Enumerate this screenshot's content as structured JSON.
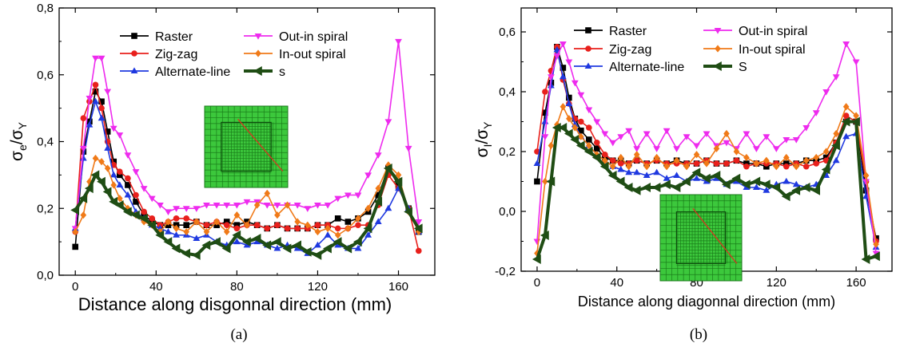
{
  "chart_data": [
    {
      "type": "line",
      "panel_label": "(a)",
      "xlabel": "Distance along disgonnal direction (mm)",
      "ylabel": {
        "main": "σ",
        "sub": "e",
        "sep": "/σ",
        "sub2": "Y"
      },
      "xlim": [
        -8,
        178
      ],
      "ylim": [
        0,
        0.8
      ],
      "xticks": [
        0,
        40,
        80,
        120,
        160
      ],
      "yticks": [
        0.0,
        0.2,
        0.4,
        0.6,
        0.8
      ],
      "ytick_labels": [
        "0,0",
        "0,2",
        "0,4",
        "0,6",
        "0,8"
      ],
      "legend_placement": "top",
      "inset": "mesh-with-diagonal",
      "series": [
        {
          "name": "Raster",
          "color": "#000000",
          "marker": "square",
          "x": [
            0,
            4,
            7,
            10,
            13,
            16,
            19,
            22,
            26,
            30,
            34,
            38,
            42,
            46,
            50,
            55,
            60,
            65,
            70,
            75,
            80,
            85,
            90,
            95,
            100,
            105,
            110,
            115,
            120,
            125,
            130,
            135,
            140,
            145,
            150,
            155,
            160,
            165,
            170
          ],
          "y": [
            0.085,
            0.37,
            0.46,
            0.55,
            0.52,
            0.43,
            0.34,
            0.3,
            0.27,
            0.22,
            0.18,
            0.16,
            0.15,
            0.15,
            0.15,
            0.15,
            0.16,
            0.15,
            0.15,
            0.16,
            0.15,
            0.16,
            0.15,
            0.14,
            0.15,
            0.14,
            0.14,
            0.14,
            0.15,
            0.15,
            0.17,
            0.16,
            0.17,
            0.19,
            0.24,
            0.32,
            0.27,
            0.2,
            0.13
          ]
        },
        {
          "name": "Zig-zag",
          "color": "#e8201c",
          "marker": "circle",
          "x": [
            0,
            4,
            7,
            10,
            13,
            16,
            19,
            22,
            26,
            30,
            34,
            38,
            42,
            46,
            50,
            55,
            60,
            65,
            70,
            75,
            80,
            85,
            90,
            95,
            100,
            105,
            110,
            115,
            120,
            125,
            130,
            135,
            140,
            145,
            150,
            155,
            160,
            165,
            170
          ],
          "y": [
            0.13,
            0.47,
            0.52,
            0.57,
            0.5,
            0.4,
            0.33,
            0.31,
            0.29,
            0.24,
            0.19,
            0.17,
            0.15,
            0.16,
            0.17,
            0.17,
            0.16,
            0.15,
            0.16,
            0.15,
            0.14,
            0.15,
            0.15,
            0.14,
            0.15,
            0.14,
            0.14,
            0.14,
            0.15,
            0.15,
            0.14,
            0.14,
            0.15,
            0.15,
            0.21,
            0.3,
            0.26,
            0.2,
            0.073
          ]
        },
        {
          "name": "Alternate-line",
          "color": "#1f39e0",
          "marker": "triangle-up",
          "x": [
            0,
            4,
            7,
            10,
            13,
            16,
            19,
            22,
            26,
            30,
            34,
            38,
            42,
            46,
            50,
            55,
            60,
            65,
            70,
            75,
            80,
            85,
            90,
            95,
            100,
            105,
            110,
            115,
            120,
            125,
            130,
            135,
            140,
            145,
            150,
            155,
            160,
            165,
            170
          ],
          "y": [
            0.14,
            0.35,
            0.45,
            0.52,
            0.47,
            0.38,
            0.3,
            0.27,
            0.24,
            0.19,
            0.17,
            0.15,
            0.14,
            0.13,
            0.12,
            0.12,
            0.11,
            0.12,
            0.1,
            0.09,
            0.1,
            0.09,
            0.1,
            0.09,
            0.08,
            0.09,
            0.08,
            0.065,
            0.09,
            0.12,
            0.09,
            0.08,
            0.08,
            0.12,
            0.16,
            0.2,
            0.26,
            0.2,
            0.13
          ]
        },
        {
          "name": "Out-in spiral",
          "color": "#ee2bee",
          "marker": "triangle-down",
          "x": [
            0,
            4,
            7,
            10,
            13,
            16,
            19,
            22,
            26,
            30,
            34,
            38,
            42,
            46,
            50,
            55,
            60,
            65,
            70,
            75,
            80,
            85,
            90,
            95,
            100,
            105,
            110,
            115,
            120,
            125,
            130,
            135,
            140,
            145,
            150,
            155,
            160,
            165,
            170
          ],
          "y": [
            0.14,
            0.38,
            0.53,
            0.65,
            0.65,
            0.55,
            0.44,
            0.42,
            0.36,
            0.31,
            0.26,
            0.23,
            0.21,
            0.19,
            0.2,
            0.2,
            0.2,
            0.21,
            0.21,
            0.21,
            0.21,
            0.22,
            0.22,
            0.21,
            0.21,
            0.21,
            0.21,
            0.2,
            0.21,
            0.21,
            0.23,
            0.24,
            0.24,
            0.3,
            0.36,
            0.46,
            0.7,
            0.38,
            0.16
          ]
        },
        {
          "name": "In-out spiral",
          "color": "#f07a18",
          "marker": "diamond",
          "x": [
            0,
            4,
            7,
            10,
            13,
            16,
            19,
            22,
            26,
            30,
            34,
            38,
            42,
            46,
            50,
            55,
            60,
            65,
            70,
            75,
            80,
            85,
            90,
            95,
            100,
            105,
            110,
            115,
            120,
            125,
            130,
            135,
            140,
            145,
            150,
            155,
            160,
            165,
            170
          ],
          "y": [
            0.13,
            0.18,
            0.28,
            0.35,
            0.34,
            0.32,
            0.27,
            0.23,
            0.2,
            0.18,
            0.16,
            0.15,
            0.13,
            0.16,
            0.14,
            0.13,
            0.16,
            0.13,
            0.16,
            0.13,
            0.18,
            0.15,
            0.21,
            0.245,
            0.18,
            0.21,
            0.16,
            0.15,
            0.13,
            0.14,
            0.12,
            0.14,
            0.17,
            0.2,
            0.26,
            0.33,
            0.3,
            0.19,
            0.13
          ]
        },
        {
          "name": "s",
          "color": "#1f4d14",
          "marker": "left-triangle",
          "thick": true,
          "x": [
            0,
            4,
            7,
            10,
            13,
            16,
            19,
            22,
            26,
            30,
            34,
            38,
            42,
            46,
            50,
            55,
            60,
            65,
            70,
            75,
            80,
            85,
            90,
            95,
            100,
            105,
            110,
            115,
            120,
            125,
            130,
            135,
            140,
            145,
            150,
            155,
            160,
            165,
            170
          ],
          "y": [
            0.195,
            0.23,
            0.26,
            0.3,
            0.28,
            0.25,
            0.22,
            0.21,
            0.19,
            0.18,
            0.17,
            0.15,
            0.12,
            0.1,
            0.08,
            0.065,
            0.06,
            0.09,
            0.1,
            0.08,
            0.12,
            0.1,
            0.11,
            0.09,
            0.1,
            0.08,
            0.09,
            0.07,
            0.06,
            0.08,
            0.1,
            0.08,
            0.1,
            0.14,
            0.22,
            0.32,
            0.28,
            0.19,
            0.14
          ]
        }
      ]
    },
    {
      "type": "line",
      "panel_label": "(b)",
      "xlabel": "Distance along diagonnal direction (mm)",
      "ylabel": {
        "main": "σ",
        "sub": "I",
        "sep": "/σ",
        "sub2": "Y"
      },
      "xlim": [
        -8,
        178
      ],
      "ylim": [
        -0.2,
        0.68
      ],
      "xticks": [
        0,
        40,
        80,
        120,
        160
      ],
      "yticks": [
        -0.2,
        0.0,
        0.2,
        0.4,
        0.6
      ],
      "ytick_labels": [
        "-0,2",
        "0,0",
        "0,2",
        "0,4",
        "0,6"
      ],
      "legend_placement": "top",
      "inset": "mesh-with-diagonal",
      "series": [
        {
          "name": "Raster",
          "color": "#000000",
          "marker": "square",
          "x": [
            0,
            4,
            7,
            10,
            13,
            16,
            19,
            22,
            26,
            30,
            34,
            38,
            42,
            46,
            50,
            55,
            60,
            65,
            70,
            75,
            80,
            85,
            90,
            95,
            100,
            105,
            110,
            115,
            120,
            125,
            130,
            135,
            140,
            145,
            150,
            155,
            160,
            165,
            170
          ],
          "y": [
            0.1,
            0.33,
            0.43,
            0.55,
            0.48,
            0.38,
            0.31,
            0.27,
            0.24,
            0.21,
            0.18,
            0.17,
            0.17,
            0.16,
            0.17,
            0.16,
            0.17,
            0.16,
            0.17,
            0.16,
            0.16,
            0.17,
            0.16,
            0.16,
            0.17,
            0.16,
            0.16,
            0.15,
            0.16,
            0.16,
            0.16,
            0.17,
            0.17,
            0.18,
            0.23,
            0.3,
            0.3,
            0.07,
            -0.09
          ]
        },
        {
          "name": "Zig-zag",
          "color": "#e8201c",
          "marker": "circle",
          "x": [
            0,
            4,
            7,
            10,
            13,
            16,
            19,
            22,
            26,
            30,
            34,
            38,
            42,
            46,
            50,
            55,
            60,
            65,
            70,
            75,
            80,
            85,
            90,
            95,
            100,
            105,
            110,
            115,
            120,
            125,
            130,
            135,
            140,
            145,
            150,
            155,
            160,
            165,
            170
          ],
          "y": [
            0.2,
            0.4,
            0.47,
            0.55,
            0.44,
            0.36,
            0.31,
            0.3,
            0.28,
            0.23,
            0.19,
            0.17,
            0.16,
            0.16,
            0.17,
            0.16,
            0.17,
            0.16,
            0.16,
            0.16,
            0.16,
            0.17,
            0.16,
            0.16,
            0.17,
            0.15,
            0.16,
            0.16,
            0.16,
            0.15,
            0.16,
            0.15,
            0.16,
            0.17,
            0.23,
            0.32,
            0.3,
            0.1,
            -0.1
          ]
        },
        {
          "name": "Alternate-line",
          "color": "#1f39e0",
          "marker": "triangle-up",
          "x": [
            0,
            4,
            7,
            10,
            13,
            16,
            19,
            22,
            26,
            30,
            34,
            38,
            42,
            46,
            50,
            55,
            60,
            65,
            70,
            75,
            80,
            85,
            90,
            95,
            100,
            105,
            110,
            115,
            120,
            125,
            130,
            135,
            140,
            145,
            150,
            155,
            160,
            165,
            170
          ],
          "y": [
            0.16,
            0.3,
            0.42,
            0.54,
            0.45,
            0.36,
            0.29,
            0.25,
            0.22,
            0.19,
            0.17,
            0.15,
            0.14,
            0.13,
            0.13,
            0.12,
            0.13,
            0.11,
            0.12,
            0.1,
            0.11,
            0.1,
            0.11,
            0.09,
            0.1,
            0.08,
            0.08,
            0.07,
            0.09,
            0.1,
            0.09,
            0.08,
            0.09,
            0.12,
            0.17,
            0.25,
            0.26,
            0.05,
            -0.12
          ]
        },
        {
          "name": "Out-in spiral",
          "color": "#ee2bee",
          "marker": "triangle-down",
          "x": [
            0,
            4,
            7,
            10,
            13,
            16,
            19,
            22,
            26,
            30,
            34,
            38,
            42,
            46,
            50,
            55,
            60,
            65,
            70,
            75,
            80,
            85,
            90,
            95,
            100,
            105,
            110,
            115,
            120,
            125,
            130,
            135,
            140,
            145,
            150,
            155,
            160,
            165,
            170
          ],
          "y": [
            -0.1,
            0.25,
            0.45,
            0.52,
            0.56,
            0.5,
            0.43,
            0.39,
            0.34,
            0.3,
            0.26,
            0.23,
            0.25,
            0.27,
            0.21,
            0.26,
            0.21,
            0.27,
            0.21,
            0.25,
            0.22,
            0.26,
            0.22,
            0.23,
            0.21,
            0.26,
            0.21,
            0.25,
            0.21,
            0.24,
            0.24,
            0.28,
            0.33,
            0.4,
            0.45,
            0.56,
            0.5,
            0.1,
            -0.14
          ]
        },
        {
          "name": "In-out spiral",
          "color": "#f07a18",
          "marker": "diamond",
          "x": [
            0,
            4,
            7,
            10,
            13,
            16,
            19,
            22,
            26,
            30,
            34,
            38,
            42,
            46,
            50,
            55,
            60,
            65,
            70,
            75,
            80,
            85,
            90,
            95,
            100,
            105,
            110,
            115,
            120,
            125,
            130,
            135,
            140,
            145,
            150,
            155,
            160,
            165,
            170
          ],
          "y": [
            -0.14,
            0.1,
            0.22,
            0.29,
            0.35,
            0.31,
            0.28,
            0.25,
            0.22,
            0.19,
            0.17,
            0.15,
            0.18,
            0.15,
            0.19,
            0.15,
            0.18,
            0.15,
            0.17,
            0.15,
            0.19,
            0.16,
            0.21,
            0.26,
            0.2,
            0.18,
            0.16,
            0.17,
            0.15,
            0.18,
            0.15,
            0.17,
            0.18,
            0.2,
            0.26,
            0.35,
            0.32,
            0.12,
            -0.11
          ]
        },
        {
          "name": "S",
          "color": "#1f4d14",
          "marker": "left-triangle",
          "thick": true,
          "x": [
            0,
            4,
            7,
            10,
            13,
            16,
            19,
            22,
            26,
            30,
            34,
            38,
            42,
            46,
            50,
            55,
            60,
            65,
            70,
            75,
            80,
            85,
            90,
            95,
            100,
            105,
            110,
            115,
            120,
            125,
            130,
            135,
            140,
            145,
            150,
            155,
            160,
            165,
            170
          ],
          "y": [
            -0.16,
            -0.08,
            0.1,
            0.28,
            0.28,
            0.26,
            0.24,
            0.22,
            0.2,
            0.18,
            0.15,
            0.12,
            0.1,
            0.08,
            0.07,
            0.08,
            0.08,
            0.09,
            0.08,
            0.1,
            0.13,
            0.11,
            0.12,
            0.09,
            0.11,
            0.09,
            0.1,
            0.09,
            0.08,
            0.05,
            0.07,
            0.08,
            0.07,
            0.14,
            0.22,
            0.3,
            0.3,
            -0.16,
            -0.15
          ]
        }
      ]
    }
  ]
}
